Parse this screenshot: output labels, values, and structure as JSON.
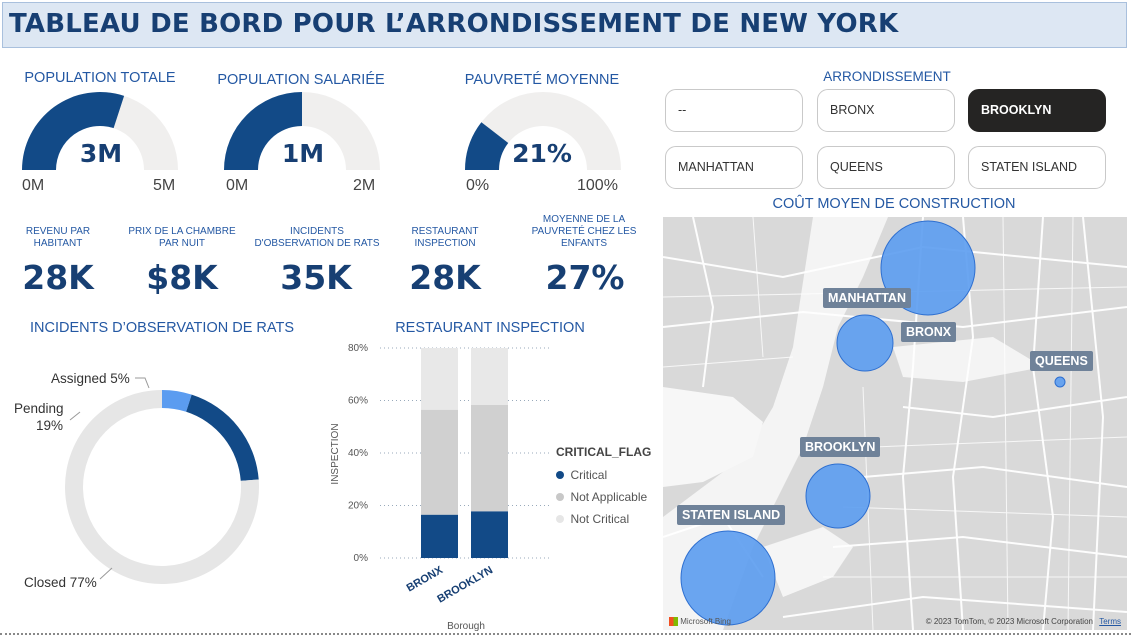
{
  "header": {
    "title": "TABLEAU DE BORD POUR L’ARRONDISSEMENT DE NEW YORK"
  },
  "gauges": [
    {
      "title": "POPULATION TOTALE",
      "value_label": "3M",
      "min_label": "0M",
      "max_label": "5M",
      "fraction": 0.6
    },
    {
      "title": "POPULATION SALARIÉE",
      "value_label": "1M",
      "min_label": "0M",
      "max_label": "2M",
      "fraction": 0.5
    },
    {
      "title": "PAUVRETÉ MOYENNE",
      "value_label": "21%",
      "min_label": "0%",
      "max_label": "100%",
      "fraction": 0.21
    }
  ],
  "cards": [
    {
      "title": "REVENU PAR HABITANT",
      "value": "28K"
    },
    {
      "title": "PRIX DE LA CHAMBRE PAR NUIT",
      "value": "$8K"
    },
    {
      "title": "INCIDENTS D'OBSERVATION DE RATS",
      "value": "35K"
    },
    {
      "title": "RESTAURANT INSPECTION",
      "value": "28K"
    },
    {
      "title": "MOYENNE DE LA PAUVRETÉ CHEZ LES ENFANTS",
      "value": "27%"
    }
  ],
  "slicer": {
    "title": "ARRONDISSEMENT",
    "options": [
      "--",
      "BRONX",
      "BROOKLYN",
      "MANHATTAN",
      "QUEENS",
      "STATEN ISLAND"
    ],
    "selected": "BROOKLYN"
  },
  "map": {
    "title": "COÛT MOYEN DE CONSTRUCTION",
    "labels": [
      "MANHATTAN",
      "BRONX",
      "QUEENS",
      "BROOKLYN",
      "STATEN ISLAND"
    ],
    "copyright": "© 2023 TomTom, © 2023 Microsoft Corporation",
    "terms": "Terms",
    "provider": "Microsoft Bing",
    "bubble_color": "#5b9cf0"
  },
  "rats": {
    "title": "INCIDENTS D’OBSERVATION DE RATS",
    "labels": {
      "assigned": "Assigned 5%",
      "pending": "Pending",
      "pending_pct": "19%",
      "closed": "Closed 77%"
    }
  },
  "restaurant": {
    "title": "RESTAURANT INSPECTION",
    "legend_title": "CRITICAL_FLAG",
    "legend": [
      "Critical",
      "Not Applicable",
      "Not Critical"
    ],
    "xlabel": "Borough",
    "ylabel": "INSPECTION"
  },
  "chart_data": [
    {
      "type": "pie",
      "title": "INCIDENTS D’OBSERVATION DE RATS",
      "categories": [
        "Assigned",
        "Pending",
        "Closed"
      ],
      "values": [
        5,
        19,
        77
      ],
      "colors": [
        "#5b9cf0",
        "#124a87",
        "#e6e6e6"
      ]
    },
    {
      "type": "bar",
      "title": "RESTAURANT INSPECTION",
      "xlabel": "Borough",
      "ylabel": "INSPECTION",
      "categories": [
        "BRONX",
        "BROOKLYN"
      ],
      "series": [
        {
          "name": "Critical",
          "values": [
            16.5,
            17.8
          ],
          "color": "#124a87"
        },
        {
          "name": "Not Applicable",
          "values": [
            40,
            40.5
          ],
          "color": "#d0d0d0"
        },
        {
          "name": "Not Critical",
          "values": [
            23.5,
            21.7
          ],
          "color": "#e8e8e8"
        }
      ],
      "yticks": [
        "0%",
        "20%",
        "40%",
        "60%",
        "80%"
      ],
      "ylim": [
        0,
        80
      ]
    }
  ]
}
